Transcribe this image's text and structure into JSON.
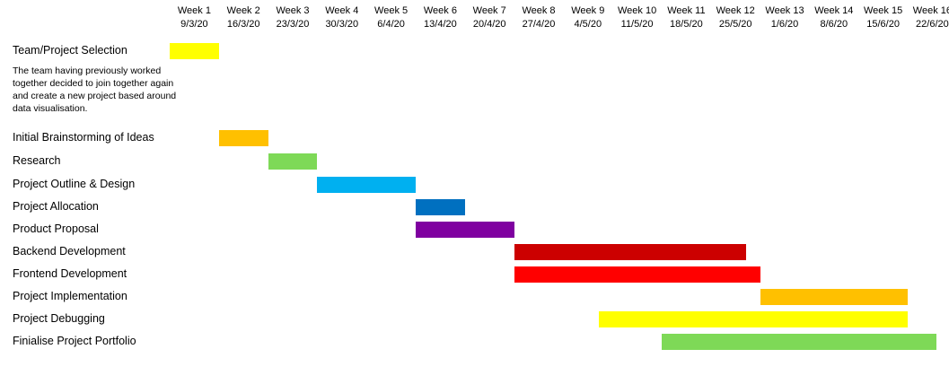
{
  "chart_data": {
    "type": "gantt",
    "title": "",
    "weeks": [
      {
        "label": "Week 1",
        "date": "9/3/20"
      },
      {
        "label": "Week 2",
        "date": "16/3/20"
      },
      {
        "label": "Week 3",
        "date": "23/3/20"
      },
      {
        "label": "Week 4",
        "date": "30/3/20"
      },
      {
        "label": "Week 5",
        "date": "6/4/20"
      },
      {
        "label": "Week 6",
        "date": "13/4/20"
      },
      {
        "label": "Week 7",
        "date": "20/4/20"
      },
      {
        "label": "Week 8",
        "date": "27/4/20"
      },
      {
        "label": "Week 9",
        "date": "4/5/20"
      },
      {
        "label": "Week 10",
        "date": "11/5/20"
      },
      {
        "label": "Week 11",
        "date": "18/5/20"
      },
      {
        "label": "Week 12",
        "date": "25/5/20"
      },
      {
        "label": "Week 13",
        "date": "1/6/20"
      },
      {
        "label": "Week 14",
        "date": "8/6/20"
      },
      {
        "label": "Week 15",
        "date": "15/6/20"
      },
      {
        "label": "Week 16",
        "date": "22/6/20"
      }
    ],
    "tasks": [
      {
        "name": "Team/Project Selection",
        "start": "9/3/20",
        "end": "16/3/20",
        "color": "#FFFF00"
      },
      {
        "name": "Initial Brainstorming of Ideas",
        "start": "16/3/20",
        "end": "23/3/20",
        "color": "#FFC000"
      },
      {
        "name": "Research",
        "start": "23/3/20",
        "end": "30/3/20",
        "color": "#7ED957"
      },
      {
        "name": "Project Outline & Design",
        "start": "30/3/20",
        "end": "13/4/20",
        "color": "#00B0F0"
      },
      {
        "name": "Project Allocation",
        "start": "13/4/20",
        "end": "20/4/20",
        "color": "#0070C0"
      },
      {
        "name": "Product Proposal",
        "start": "13/4/20",
        "end": "27/4/20",
        "color": "#7F00A0"
      },
      {
        "name": "Backend Development",
        "start": "27/4/20",
        "end": "30/5/20",
        "color": "#CC0000"
      },
      {
        "name": "Frontend Development",
        "start": "27/4/20",
        "end": "1/6/20",
        "color": "#FF0000"
      },
      {
        "name": "Project Implementation",
        "start": "1/6/20",
        "end": "22/6/20",
        "color": "#FFC000"
      },
      {
        "name": "Project Debugging",
        "start": "9/5/20",
        "end": "22/6/20",
        "color": "#FFFF00"
      },
      {
        "name": "Finialise Project Portfolio",
        "start": "18/5/20",
        "end": "29/6/20",
        "color": "#7ED957"
      }
    ],
    "note": "The team having previously worked together decided to join together again and create a new project based around data visualisation."
  }
}
